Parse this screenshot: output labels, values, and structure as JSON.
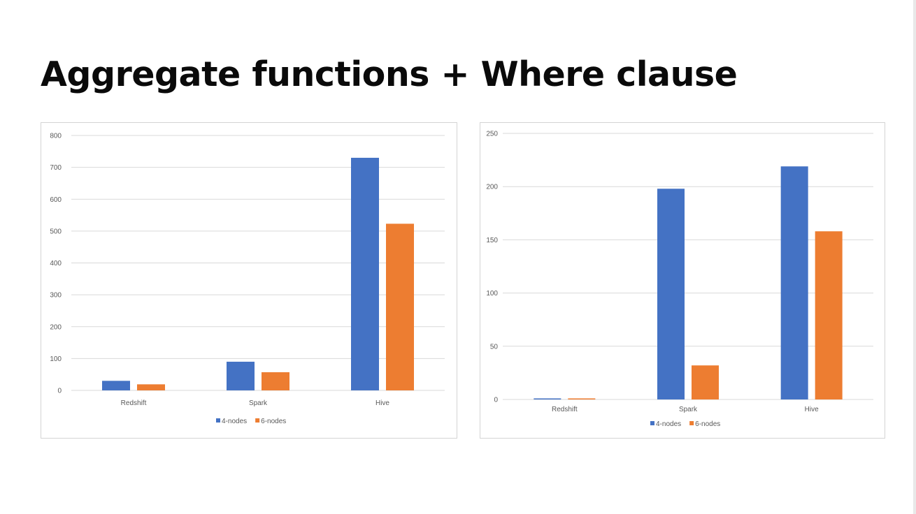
{
  "slide": {
    "title": "Aggregate functions + Where clause"
  },
  "colors": {
    "series_4_nodes": "#4472c4",
    "series_6_nodes": "#ed7d31",
    "gridline": "#d9d9d9",
    "text": "#595959"
  },
  "chart_data": [
    {
      "type": "bar",
      "title": "",
      "xlabel": "",
      "ylabel": "",
      "categories": [
        "Redshift",
        "Spark",
        "Hive"
      ],
      "series": [
        {
          "name": "4-nodes",
          "values": [
            30,
            90,
            730
          ]
        },
        {
          "name": "6-nodes",
          "values": [
            19,
            57,
            523
          ]
        }
      ],
      "ylim": [
        0,
        800
      ],
      "yticks": [
        0,
        100,
        200,
        300,
        400,
        500,
        600,
        700,
        800
      ],
      "grid": true,
      "legend": "bottom-center"
    },
    {
      "type": "bar",
      "title": "",
      "xlabel": "",
      "ylabel": "",
      "categories": [
        "Redshift",
        "Spark",
        "Hive"
      ],
      "series": [
        {
          "name": "4-nodes",
          "values": [
            1,
            198,
            219
          ]
        },
        {
          "name": "6-nodes",
          "values": [
            1,
            32,
            158
          ]
        }
      ],
      "ylim": [
        0,
        250
      ],
      "yticks": [
        0,
        50,
        100,
        150,
        200,
        250
      ],
      "grid": true,
      "legend": "bottom-center"
    }
  ]
}
